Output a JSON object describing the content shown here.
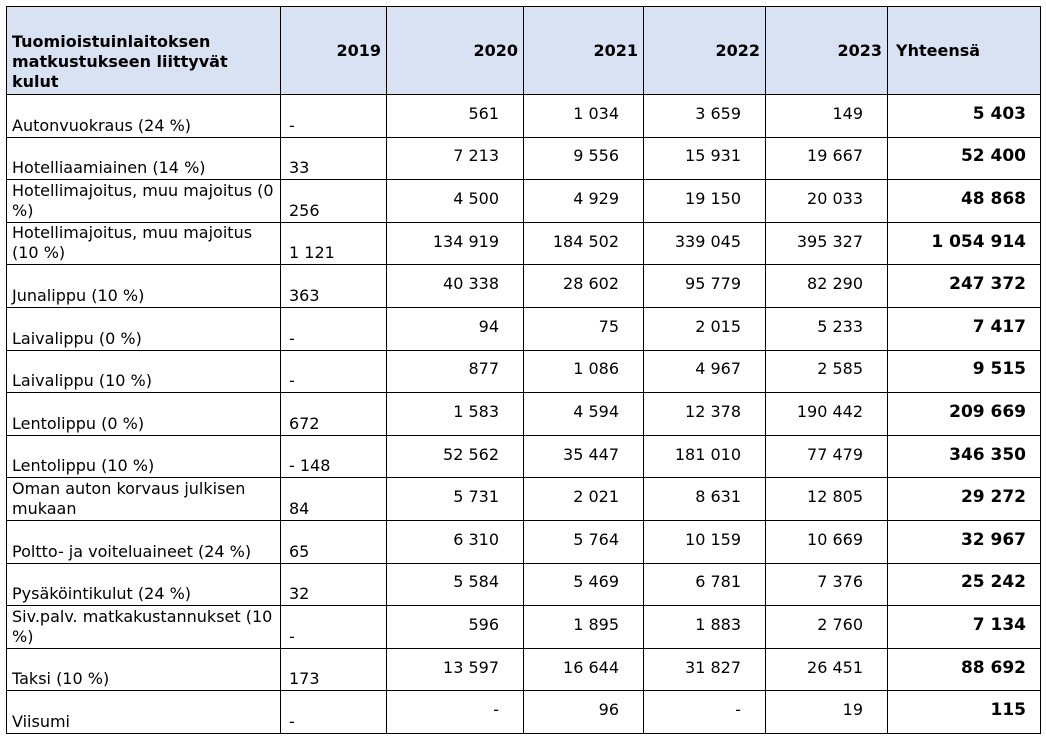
{
  "header": {
    "label": "Tuomioistuinlaitoksen matkustukseen liittyvät kulut",
    "years": [
      "2019",
      "2020",
      "2021",
      "2022",
      "2023"
    ],
    "total": "Yhteensä"
  },
  "rows": [
    {
      "label": "Autonvuokraus (24 %)",
      "y2019": "-",
      "y2020": "561",
      "y2021": "1 034",
      "y2022": "3 659",
      "y2023": "149",
      "total": "5 403"
    },
    {
      "label": "Hotelliaamiainen (14 %)",
      "y2019": "33",
      "y2020": "7 213",
      "y2021": "9 556",
      "y2022": "15 931",
      "y2023": "19 667",
      "total": "52 400"
    },
    {
      "label": "Hotellimajoitus, muu majoitus (0 %)",
      "y2019": "256",
      "y2020": "4 500",
      "y2021": "4 929",
      "y2022": "19 150",
      "y2023": "20 033",
      "total": "48 868"
    },
    {
      "label": "Hotellimajoitus, muu majoitus (10 %)",
      "y2019": "1 121",
      "y2020": "134 919",
      "y2021": "184 502",
      "y2022": "339 045",
      "y2023": "395 327",
      "total": "1 054 914"
    },
    {
      "label": "Junalippu (10 %)",
      "y2019": "363",
      "y2020": "40 338",
      "y2021": "28 602",
      "y2022": "95 779",
      "y2023": "82 290",
      "total": "247 372"
    },
    {
      "label": "Laivalippu (0 %)",
      "y2019": "-",
      "y2020": "94",
      "y2021": "75",
      "y2022": "2 015",
      "y2023": "5 233",
      "total": "7 417"
    },
    {
      "label": "Laivalippu (10 %)",
      "y2019": "-",
      "y2020": "877",
      "y2021": "1 086",
      "y2022": "4 967",
      "y2023": "2 585",
      "total": "9 515"
    },
    {
      "label": "Lentolippu (0 %)",
      "y2019": "672",
      "y2020": "1 583",
      "y2021": "4 594",
      "y2022": "12 378",
      "y2023": "190 442",
      "total": "209 669"
    },
    {
      "label": "Lentolippu (10 %)",
      "y2019": "- 148",
      "y2020": "52 562",
      "y2021": "35 447",
      "y2022": "181 010",
      "y2023": "77 479",
      "total": "346 350"
    },
    {
      "label": "Oman auton korvaus julkisen mukaan",
      "y2019": "84",
      "y2020": "5 731",
      "y2021": "2 021",
      "y2022": "8 631",
      "y2023": "12 805",
      "total": "29 272"
    },
    {
      "label": "Poltto- ja voiteluaineet (24 %)",
      "y2019": "65",
      "y2020": "6 310",
      "y2021": "5 764",
      "y2022": "10 159",
      "y2023": "10 669",
      "total": "32 967"
    },
    {
      "label": "Pysäköintikulut (24 %)",
      "y2019": "32",
      "y2020": "5 584",
      "y2021": "5 469",
      "y2022": "6 781",
      "y2023": "7 376",
      "total": "25 242"
    },
    {
      "label": "Siv.palv. matkakustannukset (10 %)",
      "y2019": "-",
      "y2020": "596",
      "y2021": "1 895",
      "y2022": "1 883",
      "y2023": "2 760",
      "total": "7 134"
    },
    {
      "label": "Taksi (10 %)",
      "y2019": "173",
      "y2020": "13 597",
      "y2021": "16 644",
      "y2022": "31 827",
      "y2023": "26 451",
      "total": "88 692"
    },
    {
      "label": "Viisumi",
      "y2019": "-",
      "y2020": "-",
      "y2021": "96",
      "y2022": "-",
      "y2023": "19",
      "total": "115"
    }
  ]
}
